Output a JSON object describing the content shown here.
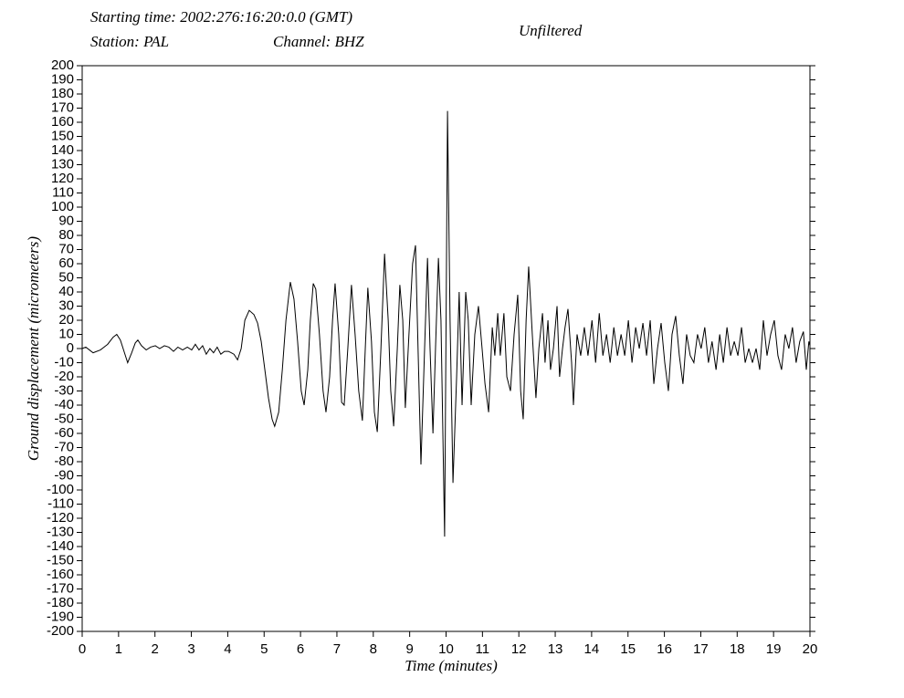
{
  "chart_data": {
    "type": "line",
    "title": "Starting time: 2002:276:16:20:0.0 (GMT)",
    "station": "Station: PAL",
    "channel": "Channel: BHZ",
    "subtitle": "Unfiltered",
    "xlabel": "Time (minutes)",
    "ylabel": "Ground displacement (micrometers)",
    "color": "#000000",
    "xlim": [
      0,
      20
    ],
    "ylim": [
      -200,
      200
    ],
    "xticks": [
      0,
      1,
      2,
      3,
      4,
      5,
      6,
      7,
      8,
      9,
      10,
      11,
      12,
      13,
      14,
      15,
      16,
      17,
      18,
      19,
      20
    ],
    "yticks": [
      200,
      190,
      180,
      170,
      160,
      150,
      140,
      130,
      120,
      110,
      100,
      90,
      80,
      70,
      60,
      50,
      40,
      30,
      20,
      10,
      0,
      -10,
      -20,
      -30,
      -40,
      -50,
      -60,
      -70,
      -80,
      -90,
      -100,
      -110,
      -120,
      -130,
      -140,
      -150,
      -160,
      -170,
      -180,
      -190,
      -200
    ],
    "x": [
      0,
      0.1,
      0.2,
      0.3,
      0.5,
      0.7,
      0.85,
      0.95,
      1.05,
      1.15,
      1.25,
      1.36,
      1.46,
      1.53,
      1.63,
      1.76,
      1.88,
      2.01,
      2.13,
      2.26,
      2.38,
      2.51,
      2.63,
      2.76,
      2.89,
      3.01,
      3.11,
      3.21,
      3.31,
      3.41,
      3.51,
      3.61,
      3.71,
      3.81,
      3.91,
      4.02,
      4.17,
      4.27,
      4.37,
      4.47,
      4.59,
      4.72,
      4.82,
      4.92,
      5.02,
      5.12,
      5.22,
      5.29,
      5.4,
      5.5,
      5.6,
      5.72,
      5.82,
      5.92,
      6.02,
      6.1,
      6.2,
      6.27,
      6.35,
      6.42,
      6.52,
      6.62,
      6.7,
      6.8,
      6.88,
      6.95,
      7.05,
      7.13,
      7.2,
      7.3,
      7.4,
      7.5,
      7.6,
      7.7,
      7.78,
      7.85,
      7.95,
      8.03,
      8.11,
      8.21,
      8.31,
      8.41,
      8.48,
      8.56,
      8.66,
      8.73,
      8.81,
      8.88,
      8.98,
      9.08,
      9.16,
      9.23,
      9.31,
      9.41,
      9.49,
      9.56,
      9.64,
      9.71,
      9.79,
      9.86,
      9.96,
      10.04,
      10.11,
      10.19,
      10.29,
      10.36,
      10.44,
      10.54,
      10.61,
      10.69,
      10.79,
      10.89,
      10.99,
      11.07,
      11.17,
      11.27,
      11.34,
      11.42,
      11.49,
      11.59,
      11.67,
      11.77,
      11.87,
      11.97,
      12.05,
      12.12,
      12.2,
      12.27,
      12.37,
      12.47,
      12.55,
      12.65,
      12.72,
      12.8,
      12.87,
      12.95,
      13.05,
      13.12,
      13.2,
      13.27,
      13.35,
      13.45,
      13.5,
      13.6,
      13.7,
      13.8,
      13.9,
      14.01,
      14.11,
      14.21,
      14.31,
      14.41,
      14.51,
      14.61,
      14.71,
      14.81,
      14.91,
      15.01,
      15.11,
      15.21,
      15.31,
      15.41,
      15.51,
      15.61,
      15.71,
      15.81,
      15.91,
      16.01,
      16.11,
      16.21,
      16.31,
      16.41,
      16.51,
      16.61,
      16.71,
      16.81,
      16.91,
      17.01,
      17.11,
      17.21,
      17.31,
      17.42,
      17.52,
      17.62,
      17.72,
      17.82,
      17.92,
      18.02,
      18.12,
      18.22,
      18.32,
      18.42,
      18.52,
      18.62,
      18.72,
      18.82,
      18.92,
      19.02,
      19.12,
      19.22,
      19.32,
      19.42,
      19.52,
      19.62,
      19.72,
      19.82,
      19.9,
      19.97,
      20
    ],
    "values": [
      0,
      1,
      -1,
      -3,
      -1,
      3,
      8,
      10,
      6,
      -2,
      -10,
      -3,
      4,
      6,
      2,
      -1,
      1,
      2,
      0,
      2,
      1,
      -2,
      1,
      -1,
      1,
      -1,
      3,
      -1,
      2,
      -4,
      0,
      -3,
      1,
      -4,
      -2,
      -2,
      -4,
      -8,
      0,
      20,
      27,
      24,
      18,
      5,
      -15,
      -35,
      -50,
      -55,
      -45,
      -15,
      20,
      47,
      35,
      5,
      -30,
      -40,
      -15,
      20,
      46,
      42,
      10,
      -30,
      -45,
      -20,
      20,
      46,
      10,
      -38,
      -40,
      0,
      45,
      10,
      -30,
      -51,
      0,
      43,
      5,
      -45,
      -59,
      0,
      67,
      20,
      -30,
      -55,
      0,
      45,
      20,
      -42,
      10,
      60,
      73,
      0,
      -82,
      0,
      64,
      0,
      -60,
      0,
      64,
      20,
      -133,
      168,
      20,
      -95,
      -20,
      40,
      -40,
      40,
      20,
      -40,
      10,
      30,
      0,
      -25,
      -45,
      15,
      -5,
      25,
      -5,
      25,
      -20,
      -30,
      10,
      38,
      -30,
      -50,
      20,
      58,
      10,
      -35,
      0,
      25,
      -10,
      20,
      -15,
      0,
      30,
      -20,
      0,
      15,
      28,
      -10,
      -40,
      10,
      -5,
      15,
      -5,
      20,
      -10,
      25,
      -5,
      10,
      -10,
      15,
      -5,
      10,
      -5,
      20,
      -10,
      15,
      0,
      18,
      -5,
      20,
      -25,
      0,
      18,
      -10,
      -30,
      10,
      23,
      -5,
      -25,
      10,
      -5,
      -10,
      10,
      0,
      15,
      -10,
      5,
      -15,
      10,
      -10,
      15,
      -5,
      5,
      -5,
      15,
      -10,
      0,
      -10,
      0,
      -15,
      20,
      -5,
      10,
      20,
      -5,
      -15,
      10,
      0,
      15,
      -10,
      5,
      12,
      -15,
      5,
      2
    ]
  }
}
